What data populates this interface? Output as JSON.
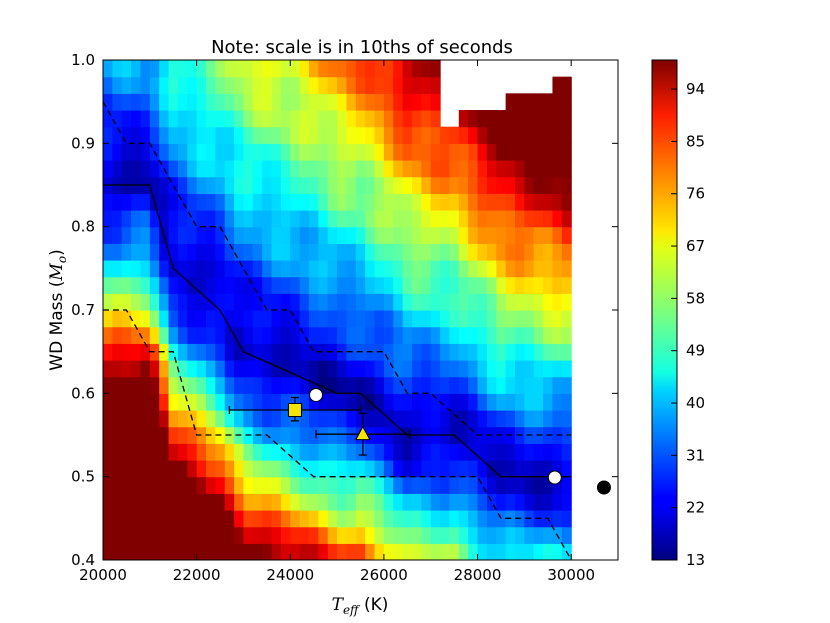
{
  "chart_data": {
    "type": "heatmap",
    "title": "Note: scale is in 10ths of seconds",
    "xlabel": {
      "symbol": "T",
      "subscript": "eff",
      "unit": " (K)"
    },
    "ylabel": {
      "prefix": "WD Mass (",
      "symbol": "M",
      "subscript": "o",
      "suffix": ")"
    },
    "xlim": [
      20000,
      31000
    ],
    "ylim": [
      0.4,
      1.0
    ],
    "data_xlim": [
      20000,
      30000
    ],
    "x_ticks": [
      20000,
      22000,
      24000,
      26000,
      28000,
      30000
    ],
    "x_tick_labels": [
      "20000",
      "22000",
      "24000",
      "26000",
      "28000",
      "30000"
    ],
    "y_ticks": [
      0.4,
      0.5,
      0.6,
      0.7,
      0.8,
      0.9,
      1.0
    ],
    "y_tick_labels": [
      "0.4",
      "0.5",
      "0.6",
      "0.7",
      "0.8",
      "0.9",
      "1.0"
    ],
    "colorbar": {
      "colormap": "jet",
      "range": [
        13,
        99
      ],
      "ticks": [
        13,
        22,
        31,
        40,
        49,
        58,
        67,
        76,
        85,
        94
      ],
      "tick_labels": [
        "13",
        "22",
        "31",
        "40",
        "49",
        "58",
        "67",
        "76",
        "85",
        "94"
      ]
    },
    "grid": false,
    "min_curve": [
      [
        20000,
        0.85
      ],
      [
        21000,
        0.85
      ],
      [
        21500,
        0.75
      ],
      [
        22500,
        0.7
      ],
      [
        23000,
        0.65
      ],
      [
        24000,
        0.625
      ],
      [
        25000,
        0.6
      ],
      [
        25500,
        0.6
      ],
      [
        26500,
        0.55
      ],
      [
        27500,
        0.55
      ],
      [
        28500,
        0.5
      ],
      [
        30000,
        0.5
      ]
    ],
    "upper_dashed": [
      [
        20000,
        0.95
      ],
      [
        20500,
        0.9
      ],
      [
        21000,
        0.9
      ],
      [
        22000,
        0.8
      ],
      [
        22500,
        0.8
      ],
      [
        23500,
        0.7
      ],
      [
        24000,
        0.7
      ],
      [
        24500,
        0.65
      ],
      [
        26000,
        0.65
      ],
      [
        26500,
        0.6
      ],
      [
        27000,
        0.6
      ],
      [
        28000,
        0.55
      ],
      [
        30000,
        0.55
      ]
    ],
    "lower_dashed": [
      [
        20000,
        0.7
      ],
      [
        20500,
        0.7
      ],
      [
        21000,
        0.65
      ],
      [
        21500,
        0.65
      ],
      [
        22000,
        0.55
      ],
      [
        23500,
        0.55
      ],
      [
        24500,
        0.5
      ],
      [
        28000,
        0.5
      ],
      [
        28500,
        0.45
      ],
      [
        29500,
        0.45
      ],
      [
        30000,
        0.4
      ]
    ],
    "markers": [
      {
        "shape": "circle",
        "x": 24550,
        "y": 0.598,
        "fill": "#ffffff"
      },
      {
        "shape": "circle",
        "x": 29650,
        "y": 0.499,
        "fill": "#ffffff"
      },
      {
        "shape": "circle",
        "x": 30700,
        "y": 0.487,
        "fill": "#000000"
      },
      {
        "shape": "square",
        "x": 24100,
        "y": 0.58,
        "fill": "#f5e400",
        "xerr": [
          22700,
          25500
        ],
        "yerr": [
          0.567,
          0.595
        ]
      },
      {
        "shape": "triangle",
        "x": 25550,
        "y": 0.551,
        "fill": "#f5e400",
        "xerr": [
          24550,
          26550
        ],
        "yerr": [
          0.526,
          0.576
        ]
      }
    ]
  }
}
